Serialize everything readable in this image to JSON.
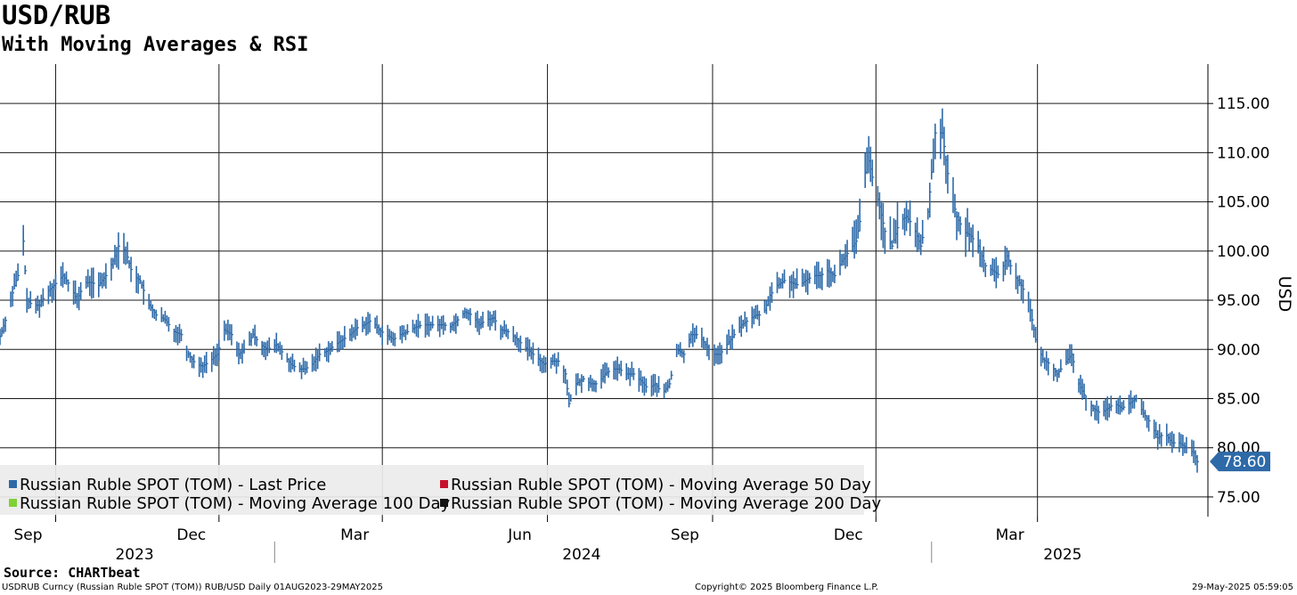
{
  "header": {
    "title": "USD/RUB",
    "subtitle": "With Moving Averages & RSI"
  },
  "footer": {
    "source": "Source: CHARTbeat",
    "left": "USDRUB Curncy (Russian Ruble SPOT (TOM)) RUB/USD  Daily 01AUG2023-29MAY2025",
    "center": "Copyright© 2025 Bloomberg Finance L.P.",
    "right": "29-May-2025 05:59:05"
  },
  "legend": {
    "items": [
      {
        "label": "Russian Ruble SPOT (TOM) - Last Price",
        "color": "#2e6aa8"
      },
      {
        "label": "Russian Ruble SPOT (TOM) - Moving Average 50 Day",
        "color": "#c8102e"
      },
      {
        "label": "Russian Ruble SPOT (TOM) - Moving Average 100 Day",
        "color": "#7fd134"
      },
      {
        "label": "Russian Ruble SPOT (TOM) - Moving Average 200 Day",
        "color": "#111111"
      }
    ]
  },
  "chart_data": {
    "type": "line",
    "style": "high-low bars",
    "ylabel": "USD",
    "ylim": [
      73,
      119
    ],
    "yticks": [
      "75.00",
      "80.00",
      "85.00",
      "90.00",
      "95.00",
      "100.00",
      "105.00",
      "110.00",
      "115.00"
    ],
    "ytick_values": [
      75,
      80,
      85,
      90,
      95,
      100,
      105,
      110,
      115
    ],
    "xlim": [
      "2023-08-01",
      "2025-05-29"
    ],
    "month_ticks": [
      {
        "label": "Sep",
        "date": "2023-09-01"
      },
      {
        "label": "Dec",
        "date": "2023-12-01"
      },
      {
        "label": "Mar",
        "date": "2024-03-01"
      },
      {
        "label": "Jun",
        "date": "2024-06-01"
      },
      {
        "label": "Sep",
        "date": "2024-09-01"
      },
      {
        "label": "Dec",
        "date": "2024-12-01"
      },
      {
        "label": "Mar",
        "date": "2025-03-01"
      }
    ],
    "year_labels": [
      {
        "label": "2023",
        "date": "2023-10-15"
      },
      {
        "label": "2024",
        "date": "2024-06-20"
      },
      {
        "label": "2025",
        "date": "2025-03-15"
      }
    ],
    "year_separators": [
      "2024-01-01",
      "2025-01-01"
    ],
    "last_price": "78.60",
    "last_price_color": "#2e6aa8",
    "grid": true,
    "legend_position": "bottom-left",
    "series": [
      {
        "name": "Russian Ruble SPOT (TOM) - Last Price",
        "color": "#2e6aa8",
        "points": [
          [
            "2023-08-01",
            91.3
          ],
          [
            "2023-08-05",
            93.5
          ],
          [
            "2023-08-09",
            96.5
          ],
          [
            "2023-08-13",
            98.5
          ],
          [
            "2023-08-14",
            101.0
          ],
          [
            "2023-08-16",
            95.0
          ],
          [
            "2023-08-19",
            94.5
          ],
          [
            "2023-08-23",
            94.5
          ],
          [
            "2023-08-27",
            95.8
          ],
          [
            "2023-08-31",
            96.5
          ],
          [
            "2023-09-05",
            97.5
          ],
          [
            "2023-09-09",
            96.5
          ],
          [
            "2023-09-13",
            95.0
          ],
          [
            "2023-09-17",
            96.8
          ],
          [
            "2023-09-21",
            96.8
          ],
          [
            "2023-09-25",
            96.5
          ],
          [
            "2023-09-29",
            97.5
          ],
          [
            "2023-10-03",
            99.0
          ],
          [
            "2023-10-06",
            100.5
          ],
          [
            "2023-10-10",
            100.0
          ],
          [
            "2023-10-14",
            97.5
          ],
          [
            "2023-10-18",
            97.0
          ],
          [
            "2023-10-23",
            94.5
          ],
          [
            "2023-10-27",
            93.5
          ],
          [
            "2023-11-01",
            93.0
          ],
          [
            "2023-11-06",
            91.8
          ],
          [
            "2023-11-10",
            91.5
          ],
          [
            "2023-11-14",
            89.5
          ],
          [
            "2023-11-18",
            88.5
          ],
          [
            "2023-11-22",
            88.3
          ],
          [
            "2023-11-26",
            88.8
          ],
          [
            "2023-11-30",
            89.5
          ],
          [
            "2023-12-04",
            92.0
          ],
          [
            "2023-12-08",
            91.5
          ],
          [
            "2023-12-12",
            89.5
          ],
          [
            "2023-12-16",
            90.2
          ],
          [
            "2023-12-20",
            91.5
          ],
          [
            "2023-12-24",
            90.5
          ],
          [
            "2023-12-28",
            90.0
          ],
          [
            "2024-01-02",
            90.5
          ],
          [
            "2024-01-06",
            89.5
          ],
          [
            "2024-01-10",
            88.5
          ],
          [
            "2024-01-14",
            88.0
          ],
          [
            "2024-01-18",
            88.0
          ],
          [
            "2024-01-22",
            88.5
          ],
          [
            "2024-01-26",
            89.5
          ],
          [
            "2024-01-30",
            89.8
          ],
          [
            "2024-02-04",
            90.5
          ],
          [
            "2024-02-08",
            91.0
          ],
          [
            "2024-02-12",
            91.5
          ],
          [
            "2024-02-16",
            92.2
          ],
          [
            "2024-02-20",
            92.5
          ],
          [
            "2024-02-24",
            93.0
          ],
          [
            "2024-02-28",
            92.0
          ],
          [
            "2024-03-03",
            91.5
          ],
          [
            "2024-03-07",
            91.0
          ],
          [
            "2024-03-11",
            91.5
          ],
          [
            "2024-03-15",
            91.8
          ],
          [
            "2024-03-19",
            92.2
          ],
          [
            "2024-03-23",
            92.5
          ],
          [
            "2024-03-27",
            92.5
          ],
          [
            "2024-03-31",
            92.5
          ],
          [
            "2024-04-04",
            92.5
          ],
          [
            "2024-04-08",
            92.3
          ],
          [
            "2024-04-12",
            93.0
          ],
          [
            "2024-04-16",
            93.8
          ],
          [
            "2024-04-20",
            93.5
          ],
          [
            "2024-04-24",
            92.5
          ],
          [
            "2024-04-28",
            93.0
          ],
          [
            "2024-05-02",
            93.2
          ],
          [
            "2024-05-06",
            92.0
          ],
          [
            "2024-05-10",
            91.8
          ],
          [
            "2024-05-14",
            91.2
          ],
          [
            "2024-05-18",
            90.5
          ],
          [
            "2024-05-22",
            89.8
          ],
          [
            "2024-05-26",
            89.2
          ],
          [
            "2024-05-30",
            88.5
          ],
          [
            "2024-06-03",
            88.8
          ],
          [
            "2024-06-07",
            88.8
          ],
          [
            "2024-06-11",
            87.5
          ],
          [
            "2024-06-13",
            84.5
          ],
          [
            "2024-06-17",
            86.5
          ],
          [
            "2024-06-21",
            87.0
          ],
          [
            "2024-06-25",
            86.5
          ],
          [
            "2024-06-29",
            86.5
          ],
          [
            "2024-07-03",
            87.5
          ],
          [
            "2024-07-07",
            88.0
          ],
          [
            "2024-07-11",
            88.0
          ],
          [
            "2024-07-15",
            87.5
          ],
          [
            "2024-07-19",
            87.5
          ],
          [
            "2024-07-23",
            86.8
          ],
          [
            "2024-07-27",
            86.0
          ],
          [
            "2024-07-31",
            86.5
          ],
          [
            "2024-08-04",
            85.5
          ],
          [
            "2024-08-08",
            86.5
          ],
          [
            "2024-08-12",
            90.0
          ],
          [
            "2024-08-16",
            89.5
          ],
          [
            "2024-08-20",
            91.5
          ],
          [
            "2024-08-24",
            91.5
          ],
          [
            "2024-08-28",
            90.5
          ],
          [
            "2024-09-01",
            89.5
          ],
          [
            "2024-09-05",
            89.5
          ],
          [
            "2024-09-09",
            90.5
          ],
          [
            "2024-09-13",
            91.5
          ],
          [
            "2024-09-17",
            92.5
          ],
          [
            "2024-09-21",
            93.0
          ],
          [
            "2024-09-25",
            93.5
          ],
          [
            "2024-09-29",
            93.5
          ],
          [
            "2024-10-03",
            95.5
          ],
          [
            "2024-10-07",
            96.5
          ],
          [
            "2024-10-11",
            97.0
          ],
          [
            "2024-10-15",
            96.8
          ],
          [
            "2024-10-19",
            96.5
          ],
          [
            "2024-10-23",
            97.0
          ],
          [
            "2024-10-27",
            97.5
          ],
          [
            "2024-10-31",
            97.5
          ],
          [
            "2024-11-04",
            98.0
          ],
          [
            "2024-11-08",
            97.5
          ],
          [
            "2024-11-12",
            99.0
          ],
          [
            "2024-11-16",
            100.0
          ],
          [
            "2024-11-20",
            101.0
          ],
          [
            "2024-11-23",
            104.0
          ],
          [
            "2024-11-26",
            110.0
          ],
          [
            "2024-11-29",
            107.5
          ],
          [
            "2024-12-03",
            104.5
          ],
          [
            "2024-12-06",
            102.0
          ],
          [
            "2024-12-10",
            100.5
          ],
          [
            "2024-12-14",
            103.0
          ],
          [
            "2024-12-18",
            103.5
          ],
          [
            "2024-12-22",
            102.5
          ],
          [
            "2024-12-26",
            100.5
          ],
          [
            "2024-12-30",
            104.0
          ],
          [
            "2025-01-03",
            112.0
          ],
          [
            "2025-01-07",
            112.0
          ],
          [
            "2025-01-11",
            106.5
          ],
          [
            "2025-01-15",
            103.5
          ],
          [
            "2025-01-19",
            102.0
          ],
          [
            "2025-01-23",
            101.5
          ],
          [
            "2025-01-27",
            100.5
          ],
          [
            "2025-01-31",
            98.5
          ],
          [
            "2025-02-04",
            98.0
          ],
          [
            "2025-02-08",
            97.5
          ],
          [
            "2025-02-12",
            99.5
          ],
          [
            "2025-02-16",
            97.5
          ],
          [
            "2025-02-20",
            96.5
          ],
          [
            "2025-02-24",
            95.0
          ],
          [
            "2025-02-28",
            91.0
          ],
          [
            "2025-03-04",
            89.0
          ],
          [
            "2025-03-08",
            88.5
          ],
          [
            "2025-03-12",
            87.5
          ],
          [
            "2025-03-16",
            88.5
          ],
          [
            "2025-03-20",
            89.5
          ],
          [
            "2025-03-24",
            86.5
          ],
          [
            "2025-03-28",
            85.0
          ],
          [
            "2025-04-01",
            84.0
          ],
          [
            "2025-04-05",
            83.5
          ],
          [
            "2025-04-09",
            84.0
          ],
          [
            "2025-04-13",
            84.5
          ],
          [
            "2025-04-17",
            84.0
          ],
          [
            "2025-04-21",
            84.5
          ],
          [
            "2025-04-25",
            85.0
          ],
          [
            "2025-04-29",
            83.5
          ],
          [
            "2025-05-03",
            82.5
          ],
          [
            "2025-05-07",
            81.0
          ],
          [
            "2025-05-11",
            81.5
          ],
          [
            "2025-05-15",
            80.5
          ],
          [
            "2025-05-19",
            80.5
          ],
          [
            "2025-05-23",
            80.0
          ],
          [
            "2025-05-27",
            79.5
          ],
          [
            "2025-05-29",
            78.6
          ]
        ]
      }
    ]
  }
}
